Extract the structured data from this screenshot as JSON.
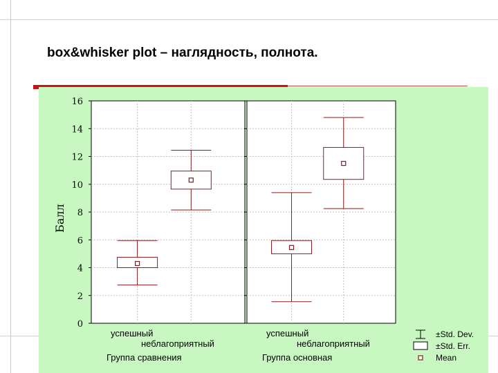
{
  "slide": {
    "title": "box&whisker plot – наглядность, полнота."
  },
  "colors": {
    "plot_bg": "#ffffff",
    "figure_bg": "#c8f7c2",
    "mark": "#8b1a1a",
    "accent_bar": "#cc1111",
    "grid": "#c0c0c0"
  },
  "chart_data": {
    "type": "box",
    "ylabel": "Балл",
    "ylim": [
      0,
      16
    ],
    "yticks": [
      0,
      2,
      4,
      6,
      8,
      10,
      12,
      14,
      16
    ],
    "grid": true,
    "legend_position": "bottom-right",
    "panels": [
      {
        "group_label": "Группа сравнения",
        "categories": [
          "успешный",
          "неблагоприятный"
        ],
        "boxes": [
          {
            "category": "успешный",
            "mean": 4.3,
            "se_low": 4.0,
            "se_high": 4.75,
            "sd_low": 2.75,
            "sd_high": 5.95
          },
          {
            "category": "неблагоприятный",
            "mean": 10.3,
            "se_low": 9.65,
            "se_high": 10.95,
            "sd_low": 8.15,
            "sd_high": 12.45
          }
        ]
      },
      {
        "group_label": "Группа основная",
        "categories": [
          "успешный",
          "неблагоприятный"
        ],
        "boxes": [
          {
            "category": "успешный",
            "mean": 5.45,
            "se_low": 5.0,
            "se_high": 5.95,
            "sd_low": 1.55,
            "sd_high": 9.4
          },
          {
            "category": "неблагоприятный",
            "mean": 11.5,
            "se_low": 10.35,
            "se_high": 12.65,
            "sd_low": 8.25,
            "sd_high": 14.8
          }
        ]
      }
    ],
    "legend": [
      {
        "marker": "whisker",
        "label": "±Std. Dev."
      },
      {
        "marker": "box",
        "label": "±Std. Err."
      },
      {
        "marker": "point",
        "label": "Mean"
      }
    ]
  }
}
